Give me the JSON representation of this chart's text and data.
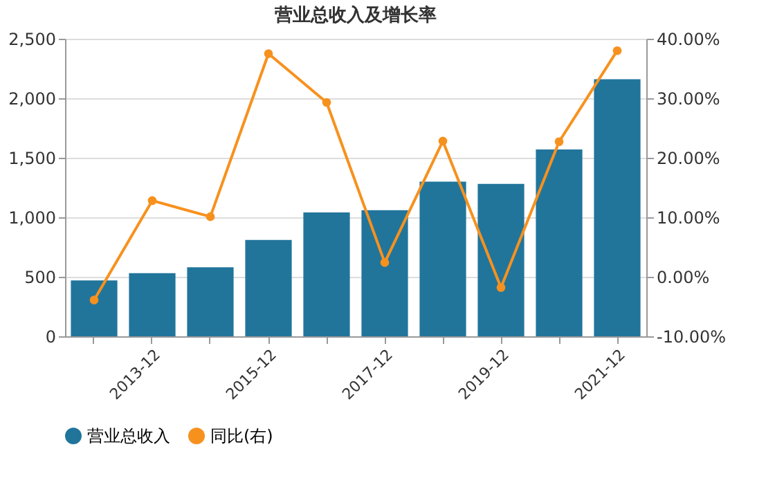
{
  "chart_data": {
    "type": "bar",
    "title": "营业总收入及增长率",
    "categories": [
      null,
      "2013-12",
      null,
      "2015-12",
      null,
      "2017-12",
      null,
      "2019-12",
      null,
      "2021-12"
    ],
    "series": [
      {
        "name": "营业总收入",
        "color": "#21759b",
        "values": [
          470,
          530,
          580,
          810,
          1040,
          1060,
          1300,
          1280,
          1570,
          2160
        ]
      },
      {
        "name": "同比(右)",
        "type": "line",
        "axis": "y2",
        "color": "#f7911e",
        "marker": "circle",
        "values": [
          -3.9,
          12.8,
          10.1,
          37.5,
          29.3,
          2.4,
          22.8,
          -1.8,
          22.7,
          38.0
        ]
      }
    ],
    "ylim": [
      0,
      2500
    ],
    "yticks": [
      {
        "value": 0,
        "label": "0"
      },
      {
        "value": 500,
        "label": "500"
      },
      {
        "value": 1000,
        "label": "1,000"
      },
      {
        "value": 1500,
        "label": "1,500"
      },
      {
        "value": 2000,
        "label": "2,000"
      },
      {
        "value": 2500,
        "label": "2,500"
      }
    ],
    "y2lim": [
      -10,
      40
    ],
    "y2ticks": [
      {
        "value": -10,
        "label": "-10.00%"
      },
      {
        "value": 0,
        "label": "0.00%"
      },
      {
        "value": 10,
        "label": "10.00%"
      },
      {
        "value": 20,
        "label": "20.00%"
      },
      {
        "value": 30,
        "label": "30.00%"
      },
      {
        "value": 40,
        "label": "40.00%"
      }
    ],
    "grid": "y",
    "legend": "bottom"
  }
}
